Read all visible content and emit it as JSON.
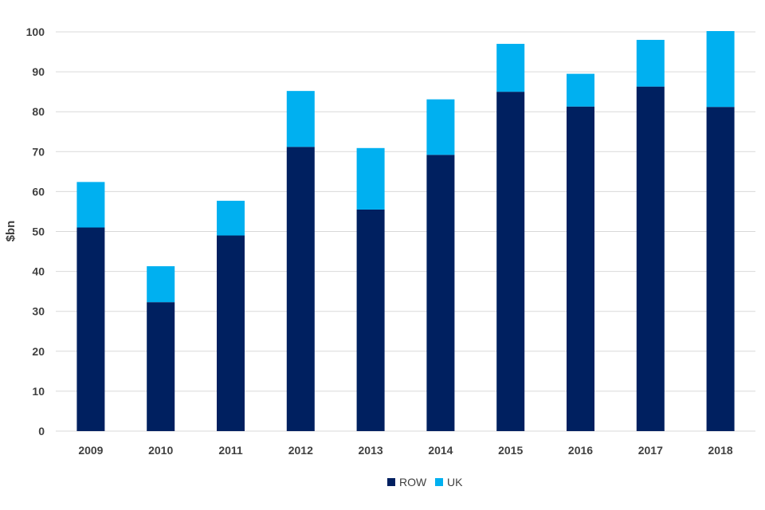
{
  "chart_data": {
    "type": "bar",
    "stacked": true,
    "ylabel": "$bn",
    "ylim": [
      0,
      100
    ],
    "yticks": [
      0,
      10,
      20,
      30,
      40,
      50,
      60,
      70,
      80,
      90,
      100
    ],
    "categories": [
      "2009",
      "2010",
      "2011",
      "2012",
      "2013",
      "2014",
      "2015",
      "2016",
      "2017",
      "2018"
    ],
    "series": [
      {
        "name": "ROW",
        "color": "#002060",
        "values": [
          51,
          32.3,
          49,
          71.2,
          55.5,
          69.2,
          85,
          81.3,
          86.3,
          81.2
        ]
      },
      {
        "name": "UK",
        "color": "#00b0f0",
        "values": [
          11.4,
          9,
          8.7,
          14,
          15.4,
          13.9,
          12,
          8.2,
          11.7,
          19
        ]
      }
    ],
    "grid": true,
    "legend_position": "bottom"
  }
}
